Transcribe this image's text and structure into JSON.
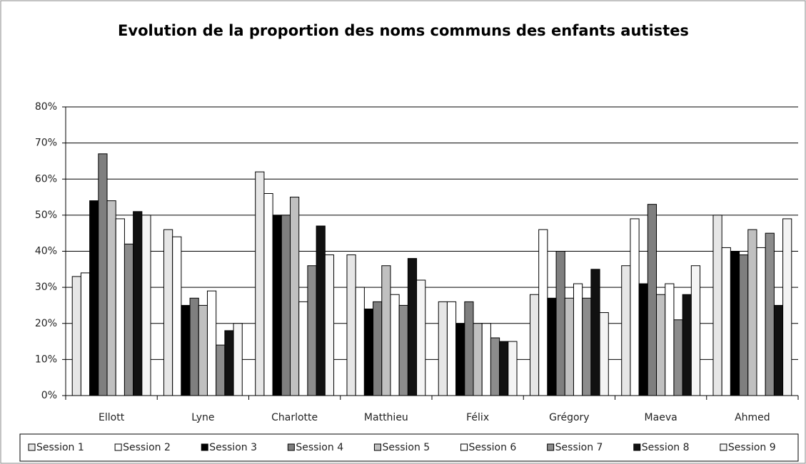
{
  "chart_data": {
    "type": "bar",
    "title": "Evolution de la proportion des noms communs des enfants autistes",
    "categories": [
      "Ellott",
      "Lyne",
      "Charlotte",
      "Matthieu",
      "Félix",
      "Grégory",
      "Maeva",
      "Ahmed"
    ],
    "series": [
      {
        "name": "Session 1",
        "color": "#e6e6e6",
        "values": [
          33,
          46,
          62,
          39,
          26,
          28,
          36,
          50
        ]
      },
      {
        "name": "Session 2",
        "color": "#ffffff",
        "values": [
          34,
          44,
          56,
          30,
          26,
          46,
          49,
          41
        ]
      },
      {
        "name": "Session 3",
        "color": "#000000",
        "values": [
          54,
          25,
          50,
          24,
          20,
          27,
          31,
          40
        ]
      },
      {
        "name": "Session 4",
        "color": "#7f7f7f",
        "values": [
          67,
          27,
          50,
          26,
          26,
          40,
          53,
          39
        ]
      },
      {
        "name": "Session 5",
        "color": "#c0c0c0",
        "values": [
          54,
          25,
          55,
          36,
          20,
          27,
          28,
          46
        ]
      },
      {
        "name": "Session 6",
        "color": "#ffffff",
        "values": [
          49,
          29,
          26,
          28,
          20,
          31,
          31,
          41
        ]
      },
      {
        "name": "Session 7",
        "color": "#8c8c8c",
        "values": [
          42,
          14,
          36,
          25,
          16,
          27,
          21,
          45
        ]
      },
      {
        "name": "Session 8",
        "color": "#111111",
        "values": [
          51,
          18,
          47,
          38,
          15,
          35,
          28,
          25
        ]
      },
      {
        "name": "Session 9",
        "color": "#f4f4f4",
        "values": [
          50,
          20,
          39,
          32,
          15,
          23,
          36,
          49
        ]
      }
    ],
    "ylim": [
      0,
      80
    ],
    "yticks": [
      {
        "value": 0,
        "label": "0%"
      },
      {
        "value": 10,
        "label": "10%"
      },
      {
        "value": 20,
        "label": "20%"
      },
      {
        "value": 30,
        "label": "30%"
      },
      {
        "value": 40,
        "label": "40%"
      },
      {
        "value": 50,
        "label": "50%"
      },
      {
        "value": 60,
        "label": "60%"
      },
      {
        "value": 70,
        "label": "70%"
      },
      {
        "value": 80,
        "label": "80%"
      }
    ],
    "grid": true
  }
}
